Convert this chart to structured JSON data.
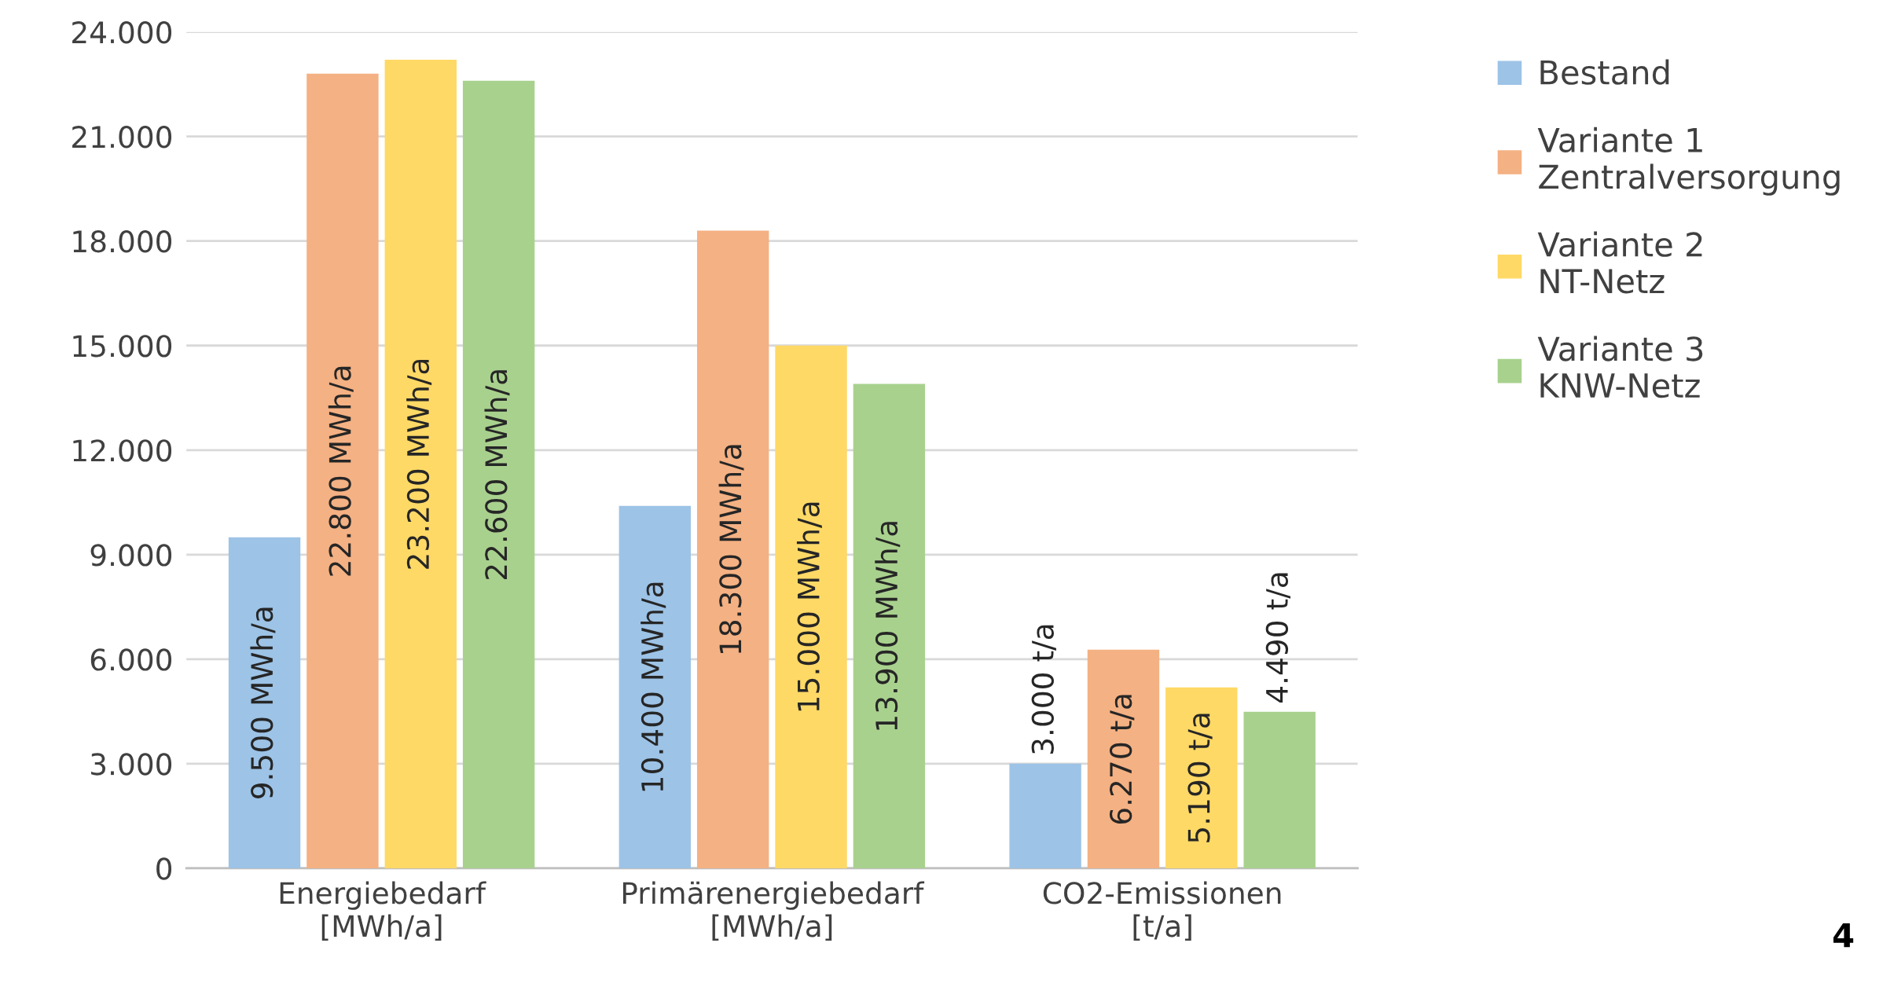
{
  "chart_data": {
    "type": "bar",
    "categories": [
      "Energiebedarf\n[MWh/a]",
      "Primärenergiebedarf\n[MWh/a]",
      "CO2-Emissionen\n[t/a]"
    ],
    "series": [
      {
        "name": "Bestand",
        "color": "#9dc3e6",
        "values": [
          9500,
          10400,
          3000
        ],
        "value_labels": [
          "9.500 MWh/a",
          "10.400 MWh/a",
          "3.000 t/a"
        ]
      },
      {
        "name": "Variante 1\nZentralversorgung",
        "color": "#f4b183",
        "values": [
          22800,
          18300,
          6270
        ],
        "value_labels": [
          "22.800 MWh/a",
          "18.300 MWh/a",
          "6.270 t/a"
        ]
      },
      {
        "name": "Variante 2\nNT-Netz",
        "color": "#ffd966",
        "values": [
          23200,
          15000,
          5190
        ],
        "value_labels": [
          "23.200 MWh/a",
          "15.000 MWh/a",
          "5.190 t/a"
        ]
      },
      {
        "name": "Variante 3\nKNW-Netz",
        "color": "#a9d18e",
        "values": [
          22600,
          13900,
          4490
        ],
        "value_labels": [
          "22.600 MWh/a",
          "13.900 MWh/a",
          "4.490 t/a"
        ]
      }
    ],
    "ylim": [
      0,
      24000
    ],
    "yticks": [
      {
        "value": 0,
        "label": "0"
      },
      {
        "value": 3000,
        "label": "3.000"
      },
      {
        "value": 6000,
        "label": "6.000"
      },
      {
        "value": 9000,
        "label": "9.000"
      },
      {
        "value": 12000,
        "label": "12.000"
      },
      {
        "value": 15000,
        "label": "15.000"
      },
      {
        "value": 18000,
        "label": "18.000"
      },
      {
        "value": 21000,
        "label": "21.000"
      },
      {
        "value": 24000,
        "label": "24.000"
      }
    ],
    "grid": "y",
    "legend": "top right",
    "annotations": [
      "4"
    ]
  }
}
